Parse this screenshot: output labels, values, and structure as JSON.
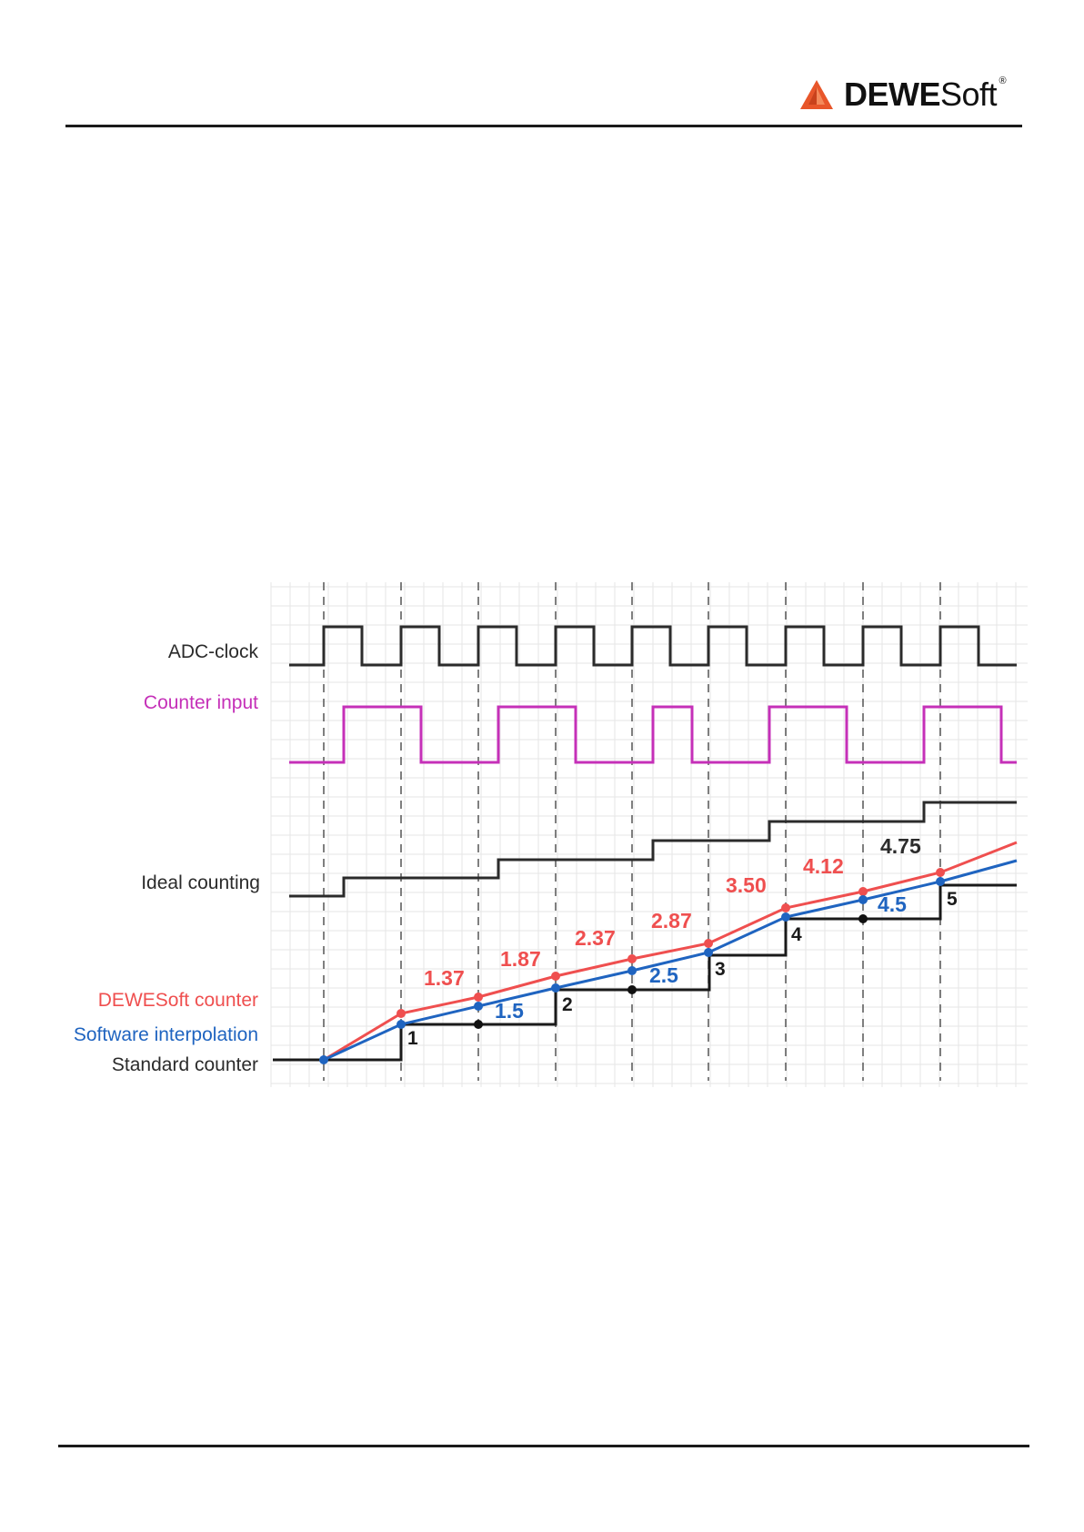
{
  "header": {
    "logo_bold": "DEWE",
    "logo_light": "Soft",
    "logo_reg": "®",
    "brand_color": "#e8562a"
  },
  "figure": {
    "signal_labels": {
      "adc_clock": "ADC-clock",
      "counter_input": "Counter input",
      "ideal_counting": "Ideal counting",
      "dewesoft_counter": "DEWESoft counter",
      "software_interpolation": "Software interpolation",
      "standard_counter": "Standard counter"
    },
    "colors": {
      "adc_clock": "#2b2b2b",
      "counter_input": "#c530b8",
      "ideal_counting": "#2b2b2b",
      "dewesoft_counter": "#ef4f4f",
      "software_interpolation": "#1f64c0",
      "standard_counter": "#1a1a1a",
      "grid": "#e6e6e6",
      "dashed": "#555555"
    },
    "dewesoft_values": [
      "1.37",
      "1.87",
      "2.37",
      "2.87",
      "3.50",
      "4.12",
      "4.75"
    ],
    "interpolation_values": [
      "1.5",
      "2.5",
      "4.5"
    ],
    "standard_values": [
      "1",
      "2",
      "3",
      "4",
      "5"
    ]
  }
}
